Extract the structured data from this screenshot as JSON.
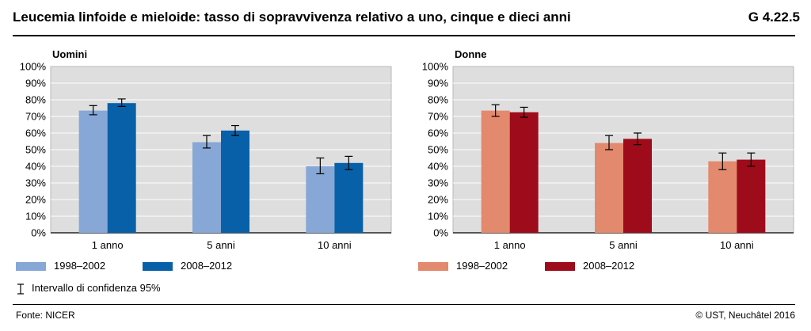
{
  "header": {
    "title": "Leucemia linfoide e mieloide: tasso di sopravvivenza relativo a uno, cinque e dieci anni",
    "figure_code": "G 4.22.5"
  },
  "footer": {
    "source": "Fonte: NICER",
    "copyright": "© UST, Neuchâtel 2016"
  },
  "legend": {
    "ci_label": "Intervallo di confidenza 95%"
  },
  "chart_data": [
    {
      "type": "bar",
      "title": "Uomini",
      "categories": [
        "1 anno",
        "5 anni",
        "10 anni"
      ],
      "ylim": [
        0,
        100
      ],
      "yticks": [
        "0%",
        "10%",
        "20%",
        "30%",
        "40%",
        "50%",
        "60%",
        "70%",
        "80%",
        "90%",
        "100%"
      ],
      "grid": true,
      "series": [
        {
          "name": "1998–2002",
          "color": "#87a7d6",
          "values": [
            73.5,
            54.5,
            40
          ],
          "ci": [
            [
              71,
              76.5
            ],
            [
              51,
              58.5
            ],
            [
              35.5,
              45
            ]
          ]
        },
        {
          "name": "2008–2012",
          "color": "#0860a8",
          "values": [
            78,
            61.5,
            42
          ],
          "ci": [
            [
              76,
              80.5
            ],
            [
              58.5,
              64.5
            ],
            [
              38,
              46
            ]
          ]
        }
      ]
    },
    {
      "type": "bar",
      "title": "Donne",
      "categories": [
        "1 anno",
        "5 anni",
        "10 anni"
      ],
      "ylim": [
        0,
        100
      ],
      "yticks": [
        "0%",
        "10%",
        "20%",
        "30%",
        "40%",
        "50%",
        "60%",
        "70%",
        "80%",
        "90%",
        "100%"
      ],
      "grid": true,
      "series": [
        {
          "name": "1998–2002",
          "color": "#e3896d",
          "values": [
            73.5,
            54,
            43
          ],
          "ci": [
            [
              70,
              77
            ],
            [
              50,
              58.5
            ],
            [
              38,
              48
            ]
          ]
        },
        {
          "name": "2008–2012",
          "color": "#9e0b1a",
          "values": [
            72.5,
            56.5,
            44
          ],
          "ci": [
            [
              69.5,
              75.5
            ],
            [
              53,
              60
            ],
            [
              40,
              48
            ]
          ]
        }
      ]
    }
  ]
}
